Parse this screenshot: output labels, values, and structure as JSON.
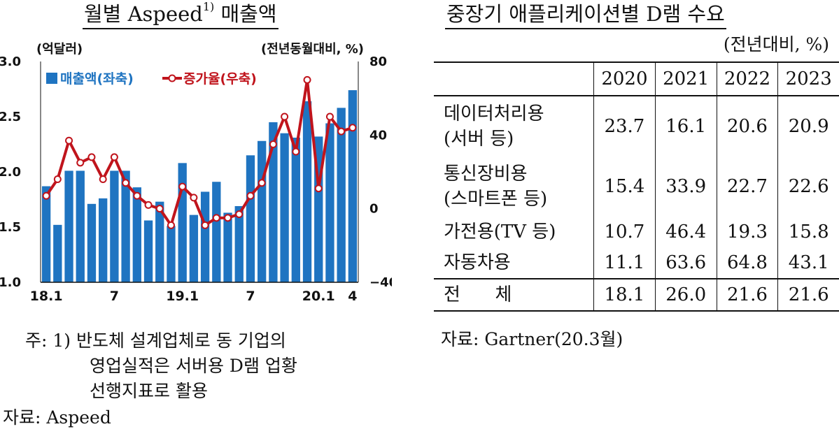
{
  "left": {
    "title": "월별 Aspeed",
    "title_sup": "1)",
    "title_tail": " 매출액",
    "note_prefix": "주: ",
    "note_lines": [
      "1) 반도체 설계업체로 동 기업의",
      "영업실적은 서버용 D램 업황",
      "선행지표로 활용"
    ],
    "source": "자료: Aspeed"
  },
  "chart_data": {
    "type": "bar",
    "y_left_label": "(억달러)",
    "y_right_label": "(전년동월대비, %)",
    "y_left_range": [
      1.0,
      3.0
    ],
    "y_left_ticks": [
      "3.0",
      "2.5",
      "2.0",
      "1.5",
      "1.0"
    ],
    "y_right_range": [
      -40,
      80
    ],
    "y_right_ticks": [
      "80",
      "40",
      "0",
      "-40"
    ],
    "x_tick_labels": [
      "18.1",
      "7",
      "19.1",
      "7",
      "20.1",
      "4"
    ],
    "legend": [
      "매출액(좌축)",
      "증가율(우축)"
    ],
    "categories": [
      "18.1",
      "18.2",
      "18.3",
      "18.4",
      "18.5",
      "18.6",
      "18.7",
      "18.8",
      "18.9",
      "18.10",
      "18.11",
      "18.12",
      "19.1",
      "19.2",
      "19.3",
      "19.4",
      "19.5",
      "19.6",
      "19.7",
      "19.8",
      "19.9",
      "19.10",
      "19.11",
      "19.12",
      "20.1",
      "20.2",
      "20.3",
      "20.4"
    ],
    "series": [
      {
        "name": "매출액(좌축)",
        "axis": "left",
        "type": "bar",
        "values": [
          1.87,
          1.52,
          2.01,
          2.01,
          1.71,
          1.76,
          2.01,
          2.01,
          1.86,
          1.56,
          1.73,
          1.51,
          2.08,
          1.61,
          1.82,
          1.91,
          1.63,
          1.69,
          2.15,
          2.28,
          2.45,
          2.35,
          2.31,
          2.64,
          2.32,
          2.44,
          2.58,
          2.74
        ]
      },
      {
        "name": "증가율(우축)",
        "axis": "right",
        "type": "line",
        "values": [
          7,
          16,
          37,
          25,
          28,
          16,
          28,
          14,
          7,
          2,
          0,
          -9,
          12,
          6,
          -9,
          -5,
          -5,
          -3,
          7,
          14,
          35,
          50,
          31,
          70,
          11,
          50,
          42,
          44
        ]
      }
    ],
    "colors": {
      "bar": "#1f74c1",
      "line": "#c0141c"
    }
  },
  "right": {
    "title": "중장기 애플리케이션별 D램 수요",
    "unit": "(전년대비, %)",
    "columns": [
      "2020",
      "2021",
      "2022",
      "2023"
    ],
    "rows": [
      {
        "label1": "데이터처리용",
        "label2": "(서버 등)",
        "values": [
          "23.7",
          "16.1",
          "20.6",
          "20.9"
        ]
      },
      {
        "label1": "통신장비용",
        "label2": "(스마트폰 등)",
        "values": [
          "15.4",
          "33.9",
          "22.7",
          "22.6"
        ]
      },
      {
        "label1": "가전용(TV 등)",
        "values": [
          "10.7",
          "46.4",
          "19.3",
          "15.8"
        ]
      },
      {
        "label1": "자동차용",
        "values": [
          "11.1",
          "63.6",
          "64.8",
          "43.1"
        ]
      }
    ],
    "total": {
      "label": "전      체",
      "values": [
        "18.1",
        "26.0",
        "21.6",
        "21.6"
      ]
    },
    "source": "자료: Gartner(20.3월)"
  }
}
